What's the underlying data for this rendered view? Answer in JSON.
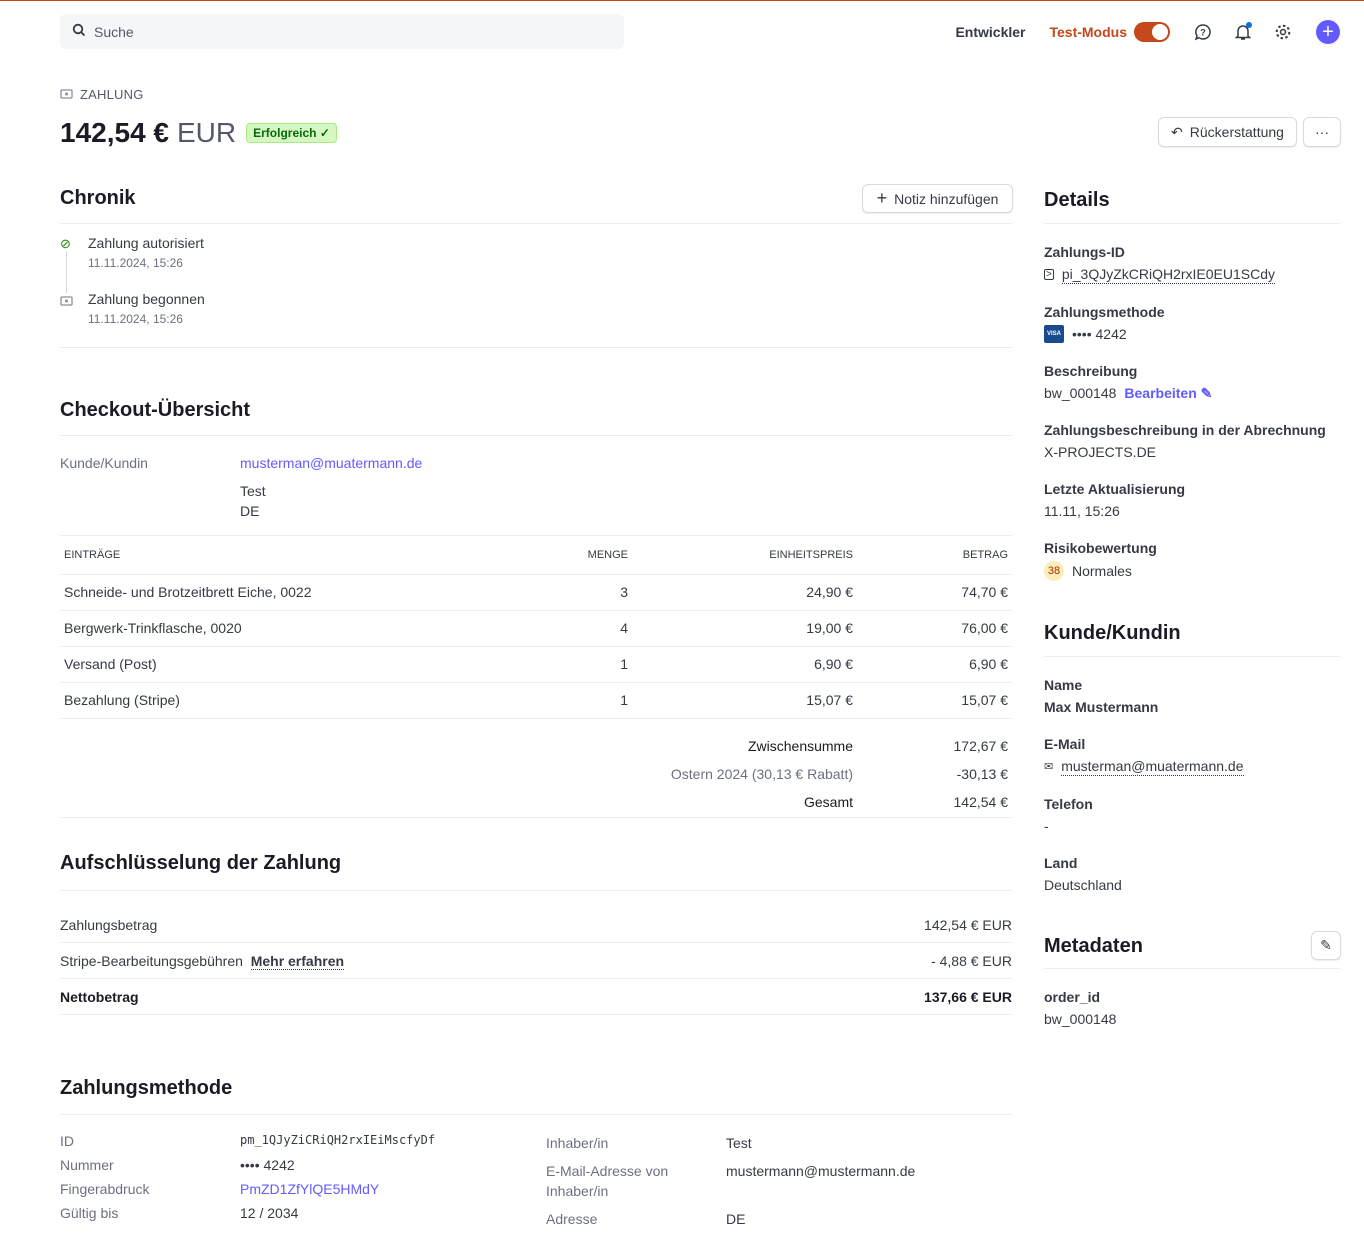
{
  "search": {
    "placeholder": "Suche"
  },
  "topnav": {
    "developer": "Entwickler",
    "test_mode": "Test-Modus"
  },
  "header": {
    "kicker": "ZAHLUNG",
    "amount": "142,54 €",
    "currency": "EUR",
    "status": "Erfolgreich",
    "refund": "Rückerstattung",
    "more": "···"
  },
  "timeline": {
    "title": "Chronik",
    "add_note": "Notiz hinzufügen",
    "events": [
      {
        "title": "Zahlung autorisiert",
        "time": "11.11.2024, 15:26"
      },
      {
        "title": "Zahlung begonnen",
        "time": "11.11.2024, 15:26"
      }
    ]
  },
  "checkout": {
    "title": "Checkout-Übersicht",
    "customer_label": "Kunde/Kundin",
    "customer_email": "musterman@muatermann.de",
    "customer_name": "Test",
    "customer_country": "DE",
    "headers": [
      "EINTRÄGE",
      "MENGE",
      "EINHEITSPREIS",
      "BETRAG"
    ],
    "rows": [
      [
        "Schneide- und Brotzeitbrett Eiche, 0022",
        "3",
        "24,90 €",
        "74,70 €"
      ],
      [
        "Bergwerk-Trinkflasche, 0020",
        "4",
        "19,00 €",
        "76,00 €"
      ],
      [
        "Versand (Post)",
        "1",
        "6,90 €",
        "6,90 €"
      ],
      [
        "Bezahlung (Stripe)",
        "1",
        "15,07 €",
        "15,07 €"
      ]
    ],
    "subtotal_label": "Zwischensumme",
    "subtotal": "172,67 €",
    "discount_label": "Ostern 2024 (30,13 € Rabatt)",
    "discount": "-30,13 €",
    "total_label": "Gesamt",
    "total": "142,54 €"
  },
  "breakdown": {
    "title": "Aufschlüsselung der Zahlung",
    "amount_label": "Zahlungsbetrag",
    "amount": "142,54 € EUR",
    "fee_label": "Stripe-Bearbeitungsgebühren",
    "fee_link": "Mehr erfahren",
    "fee": "- 4,88 € EUR",
    "net_label": "Nettobetrag",
    "net": "137,66 € EUR"
  },
  "method": {
    "title": "Zahlungsmethode",
    "id_label": "ID",
    "id": "pm_1QJyZiCRiQH2rxIEiMscfyDf",
    "number_label": "Nummer",
    "number": "•••• 4242",
    "fingerprint_label": "Fingerabdruck",
    "fingerprint": "PmZD1ZfYlQE5HMdY",
    "expiry_label": "Gültig bis",
    "expiry": "12 / 2034",
    "holder_label": "Inhaber/in",
    "holder": "Test",
    "email_label": "E-Mail-Adresse von Inhaber/in",
    "email": "mustermann@mustermann.de",
    "address_label": "Adresse",
    "address": "DE"
  },
  "details": {
    "title": "Details",
    "id_label": "Zahlungs-ID",
    "id": "pi_3QJyZkCRiQH2rxIE0EU1SCdy",
    "method_label": "Zahlungsmethode",
    "card_brand": "VISA",
    "method": "•••• 4242",
    "desc_label": "Beschreibung",
    "desc": "bw_000148",
    "edit": "Bearbeiten",
    "statement_label": "Zahlungsbeschreibung in der Abrechnung",
    "statement": "X-PROJECTS.DE",
    "updated_label": "Letzte Aktualisierung",
    "updated": "11.11, 15:26",
    "risk_label": "Risikobewertung",
    "risk_score": "38",
    "risk": "Normales"
  },
  "customer": {
    "title": "Kunde/Kundin",
    "name_label": "Name",
    "name": "Max Mustermann",
    "email_label": "E-Mail",
    "email": "musterman@muatermann.de",
    "phone_label": "Telefon",
    "phone": "-",
    "country_label": "Land",
    "country": "Deutschland"
  },
  "metadata": {
    "title": "Metadaten",
    "key": "order_id",
    "value": "bw_000148"
  }
}
